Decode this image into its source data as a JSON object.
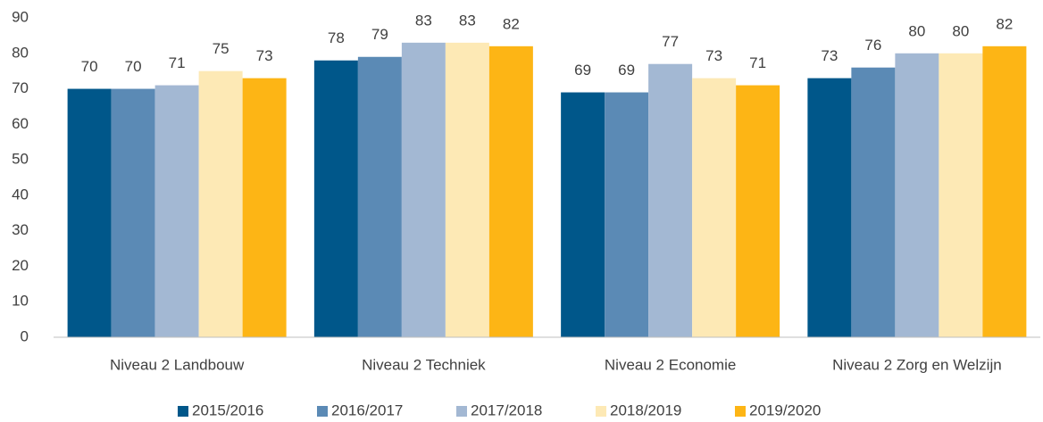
{
  "chart_data": {
    "type": "bar",
    "categories": [
      "Niveau 2 Landbouw",
      "Niveau 2 Techniek",
      "Niveau 2 Economie",
      "Niveau 2 Zorg en Welzijn"
    ],
    "series": [
      {
        "name": "2015/2016",
        "color": "#00578a",
        "values": [
          70,
          78,
          69,
          73
        ]
      },
      {
        "name": "2016/2017",
        "color": "#5b8ab5",
        "values": [
          70,
          79,
          69,
          76
        ]
      },
      {
        "name": "2017/2018",
        "color": "#a3b8d3",
        "values": [
          71,
          83,
          77,
          80
        ]
      },
      {
        "name": "2018/2019",
        "color": "#fde9b5",
        "values": [
          75,
          83,
          73,
          80
        ]
      },
      {
        "name": "2019/2020",
        "color": "#fdb515",
        "values": [
          73,
          82,
          71,
          82
        ]
      }
    ],
    "ylim": [
      0,
      90
    ],
    "yticks": [
      0,
      10,
      20,
      30,
      40,
      50,
      60,
      70,
      80,
      90
    ],
    "grid": false,
    "legend": "bottom"
  }
}
